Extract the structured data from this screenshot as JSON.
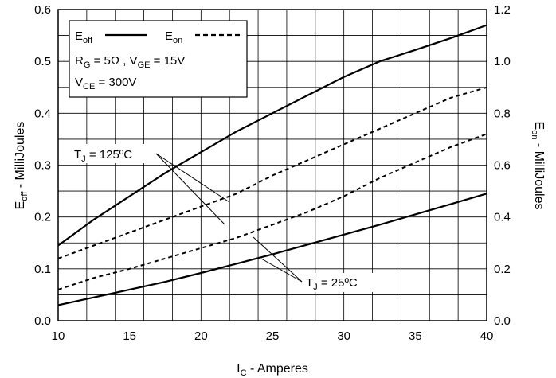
{
  "chart_data": {
    "type": "line",
    "xlabel": {
      "main": "I",
      "sub": "C",
      "rest": " - Amperes"
    },
    "ylabel_left": {
      "main": "E",
      "sub": "off",
      "rest": " - MilliJoules"
    },
    "ylabel_right": {
      "main": "E",
      "sub": "on",
      "rest": " - MilliJoules"
    },
    "x_ticks": [
      "10",
      "15",
      "20",
      "25",
      "30",
      "35",
      "40"
    ],
    "y_left_ticks": [
      "0.0",
      "0.1",
      "0.2",
      "0.3",
      "0.4",
      "0.5",
      "0.6"
    ],
    "y_right_ticks": [
      "0.0",
      "0.2",
      "0.4",
      "0.6",
      "0.8",
      "1.0",
      "1.2"
    ],
    "xlim": [
      10,
      40
    ],
    "ylim_left": [
      0,
      0.6
    ],
    "ylim_right": [
      0,
      1.2
    ],
    "grid": true,
    "legend": {
      "eoff": {
        "main": "E",
        "sub": "off"
      },
      "eon": {
        "main": "E",
        "sub": "on"
      },
      "line1": {
        "p1": "R",
        "s1": "G",
        "p2": " = 5Ω ,  V",
        "s2": "GE",
        "p3": " = 15V"
      },
      "line2": {
        "p1": "V",
        "s1": "CE",
        "p2": " = 300V"
      }
    },
    "annotations": {
      "tj125": {
        "main": "T",
        "sub": "J",
        "rest": " = 125ºC"
      },
      "tj25": {
        "main": "T",
        "sub": "J",
        "rest": " = 25ºC"
      }
    },
    "series": [
      {
        "style": "solid",
        "axis": "left",
        "condition": "TJ = 125ºC",
        "x": [
          10,
          12.5,
          15,
          17.5,
          20,
          22.5,
          25,
          27.5,
          30,
          32.5,
          35,
          37.5,
          40
        ],
        "y": [
          0.145,
          0.195,
          0.24,
          0.285,
          0.325,
          0.365,
          0.4,
          0.435,
          0.47,
          0.5,
          0.522,
          0.545,
          0.57
        ]
      },
      {
        "style": "solid",
        "axis": "left",
        "condition": "TJ = 25ºC",
        "x": [
          10,
          12.5,
          15,
          17.5,
          20,
          22.5,
          25,
          27.5,
          30,
          32.5,
          35,
          37.5,
          40
        ],
        "y": [
          0.03,
          0.045,
          0.06,
          0.075,
          0.092,
          0.11,
          0.128,
          0.147,
          0.166,
          0.185,
          0.205,
          0.225,
          0.245
        ]
      },
      {
        "style": "dashed",
        "axis": "right",
        "condition": "TJ = 125ºC",
        "x": [
          10,
          12.5,
          15,
          17.5,
          20,
          22.5,
          25,
          27.5,
          30,
          32.5,
          35,
          37.5,
          40
        ],
        "y": [
          0.24,
          0.29,
          0.34,
          0.39,
          0.44,
          0.49,
          0.56,
          0.62,
          0.68,
          0.74,
          0.8,
          0.86,
          0.9
        ]
      },
      {
        "style": "dashed",
        "axis": "right",
        "condition": "TJ = 25ºC",
        "x": [
          10,
          12.5,
          15,
          17.5,
          20,
          22.5,
          25,
          27.5,
          30,
          32.5,
          35,
          37.5,
          40
        ],
        "y": [
          0.12,
          0.165,
          0.2,
          0.24,
          0.28,
          0.32,
          0.37,
          0.42,
          0.48,
          0.55,
          0.61,
          0.67,
          0.72
        ]
      }
    ]
  }
}
